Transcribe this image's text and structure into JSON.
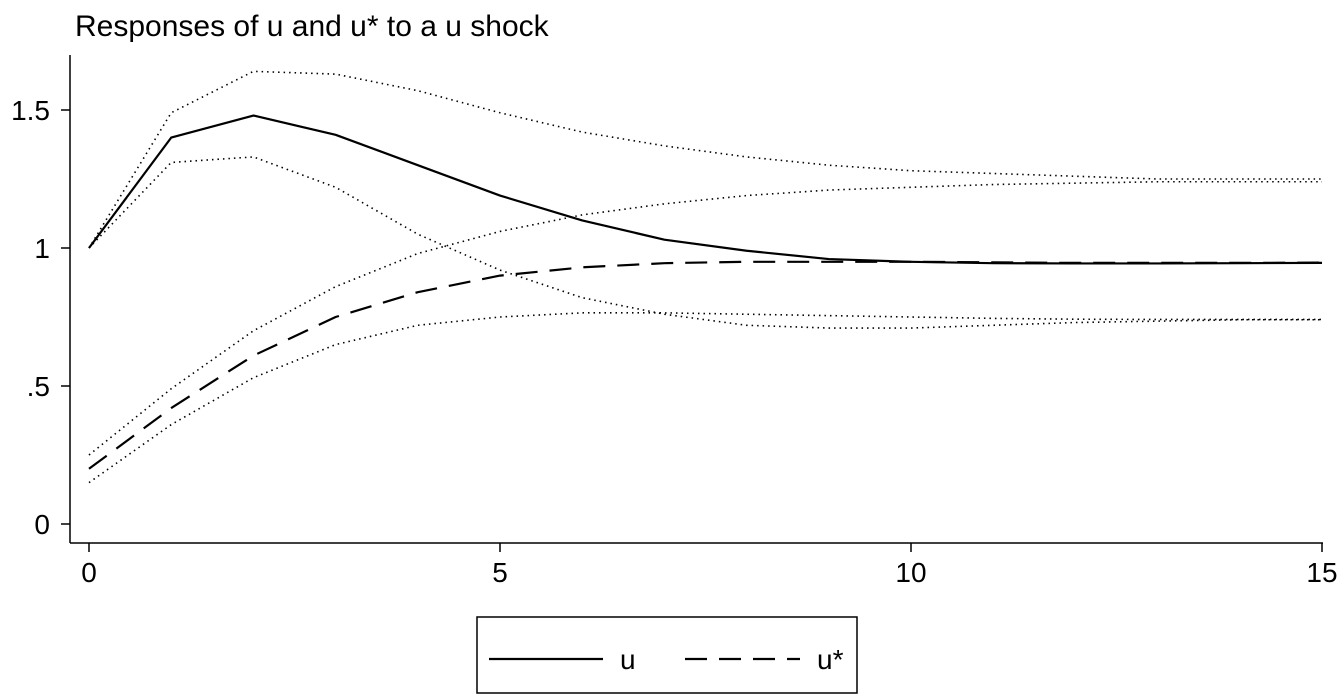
{
  "chart_data": {
    "type": "line",
    "title": "Responses of u and u* to a u shock",
    "xlabel": "",
    "ylabel": "",
    "xlim": [
      0,
      15
    ],
    "ylim": [
      0,
      1.6
    ],
    "x_ticks": [
      0,
      5,
      10,
      15
    ],
    "x_tick_labels": [
      "0",
      "5",
      "10",
      "15"
    ],
    "y_ticks": [
      0,
      0.5,
      1,
      1.5
    ],
    "y_tick_labels": [
      "0",
      ".5",
      "1",
      "1.5"
    ],
    "grid": false,
    "legend_position": "bottom",
    "x": [
      0,
      1,
      2,
      3,
      4,
      5,
      6,
      7,
      8,
      9,
      10,
      11,
      12,
      13,
      14,
      15
    ],
    "series": [
      {
        "name": "u",
        "style": "solid",
        "values": [
          1.0,
          1.4,
          1.48,
          1.41,
          1.3,
          1.19,
          1.1,
          1.03,
          0.99,
          0.96,
          0.95,
          0.945,
          0.944,
          0.944,
          0.945,
          0.946
        ]
      },
      {
        "name": "u*",
        "style": "dashed",
        "values": [
          0.2,
          0.42,
          0.61,
          0.75,
          0.84,
          0.9,
          0.93,
          0.945,
          0.95,
          0.95,
          0.95,
          0.948,
          0.946,
          0.946,
          0.946,
          0.947
        ]
      },
      {
        "style": "dotted",
        "values": [
          1.0,
          1.49,
          1.64,
          1.63,
          1.57,
          1.49,
          1.42,
          1.37,
          1.33,
          1.3,
          1.28,
          1.27,
          1.26,
          1.25,
          1.25,
          1.25
        ]
      },
      {
        "style": "dotted",
        "values": [
          1.0,
          1.31,
          1.33,
          1.22,
          1.05,
          0.92,
          0.82,
          0.76,
          0.72,
          0.71,
          0.71,
          0.72,
          0.73,
          0.735,
          0.74,
          0.74
        ]
      },
      {
        "style": "dotted",
        "values": [
          0.25,
          0.49,
          0.7,
          0.86,
          0.98,
          1.06,
          1.12,
          1.16,
          1.19,
          1.21,
          1.22,
          1.23,
          1.235,
          1.24,
          1.24,
          1.24
        ]
      },
      {
        "style": "dotted",
        "values": [
          0.15,
          0.36,
          0.53,
          0.65,
          0.72,
          0.75,
          0.765,
          0.765,
          0.76,
          0.755,
          0.75,
          0.745,
          0.742,
          0.741,
          0.741,
          0.741
        ]
      }
    ]
  }
}
